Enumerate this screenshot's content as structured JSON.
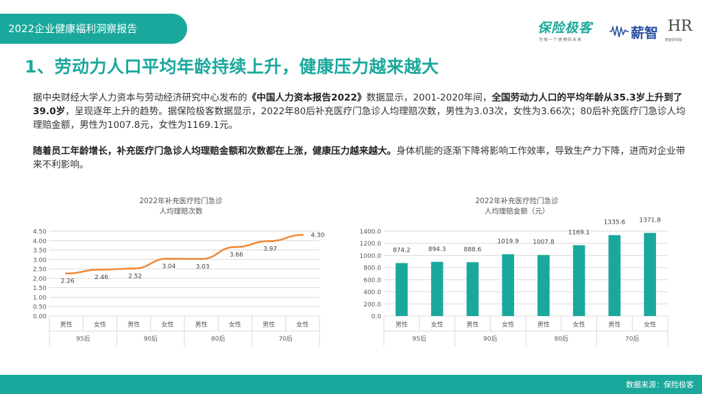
{
  "header": {
    "report_title": "2022企业健康福利洞察报告",
    "logo1_name": "保险极客",
    "logo1_tagline": "为每一个拼搏的未来",
    "logo2_name": "薪智",
    "logo3_name": "HR",
    "logo3_sub": "数智研究院"
  },
  "headline": "1、劳动力人口平均年龄持续上升，健康压力越来越大",
  "paragraph1": {
    "t1": "据中央财经大学人力资本与劳动经济研究中心发布的",
    "b1": "《中国人力资本报告2022》",
    "t2": "数据显示，2001-2020年间，",
    "b2": "全国劳动力人口的平均年龄从35.3岁上升到了39.0岁",
    "t3": "，呈现逐年上升的趋势。据保险极客数据显示，2022年80后补充医疗门急诊人均理赔次数，男性为3.03次，女性为3.66次；80后补充医疗门急诊人均理赔金额，男性为1007.8元，女性为1169.1元。"
  },
  "paragraph2": {
    "b1": "随着员工年龄增长，补充医疗门急诊人均理赔金额和次数都在上涨，健康压力越来越大。",
    "t1": "身体机能的逐渐下降将影响工作效率，导致生产力下降，进而对企业带来不利影响。"
  },
  "chart_data": [
    {
      "type": "line",
      "title_line1": "2022年补充医疗险门急诊",
      "title_line2": "人均理赔次数",
      "categories": [
        "男性",
        "女性",
        "男性",
        "女性",
        "男性",
        "女性",
        "男性",
        "女性"
      ],
      "groups": [
        "95后",
        "90后",
        "80后",
        "70后"
      ],
      "values": [
        2.26,
        2.46,
        2.52,
        3.04,
        3.03,
        3.66,
        3.97,
        4.3
      ],
      "value_labels": [
        "2.26",
        "2.46",
        "2.52",
        "3.04",
        "3.03",
        "3.66",
        "3.97",
        "4.30"
      ],
      "yticks": [
        "0.00",
        "0.50",
        "1.00",
        "1.50",
        "2.00",
        "2.50",
        "3.00",
        "3.50",
        "4.00",
        "4.50"
      ],
      "ylim": [
        0,
        4.5
      ],
      "color": "#f08a3a",
      "grid": true
    },
    {
      "type": "bar",
      "title_line1": "2022年补充医疗险门急诊",
      "title_line2": "人均理赔金额（元）",
      "categories": [
        "男性",
        "女性",
        "男性",
        "女性",
        "男性",
        "女性",
        "男性",
        "女性"
      ],
      "groups": [
        "95后",
        "90后",
        "80后",
        "70后"
      ],
      "values": [
        874.2,
        894.3,
        888.6,
        1019.9,
        1007.8,
        1169.1,
        1335.6,
        1371.8
      ],
      "value_labels": [
        "874.2",
        "894.3",
        "888.6",
        "1019.9",
        "1007.8",
        "1169.1",
        "1335.6",
        "1371.8"
      ],
      "yticks": [
        "0.0",
        "200.0",
        "400.0",
        "600.0",
        "800.0",
        "1000.0",
        "1200.0",
        "1400.0"
      ],
      "ylim": [
        0,
        1400
      ],
      "color": "#1aa89c",
      "grid": true
    }
  ],
  "footer": {
    "source": "数据来源：保险极客"
  }
}
